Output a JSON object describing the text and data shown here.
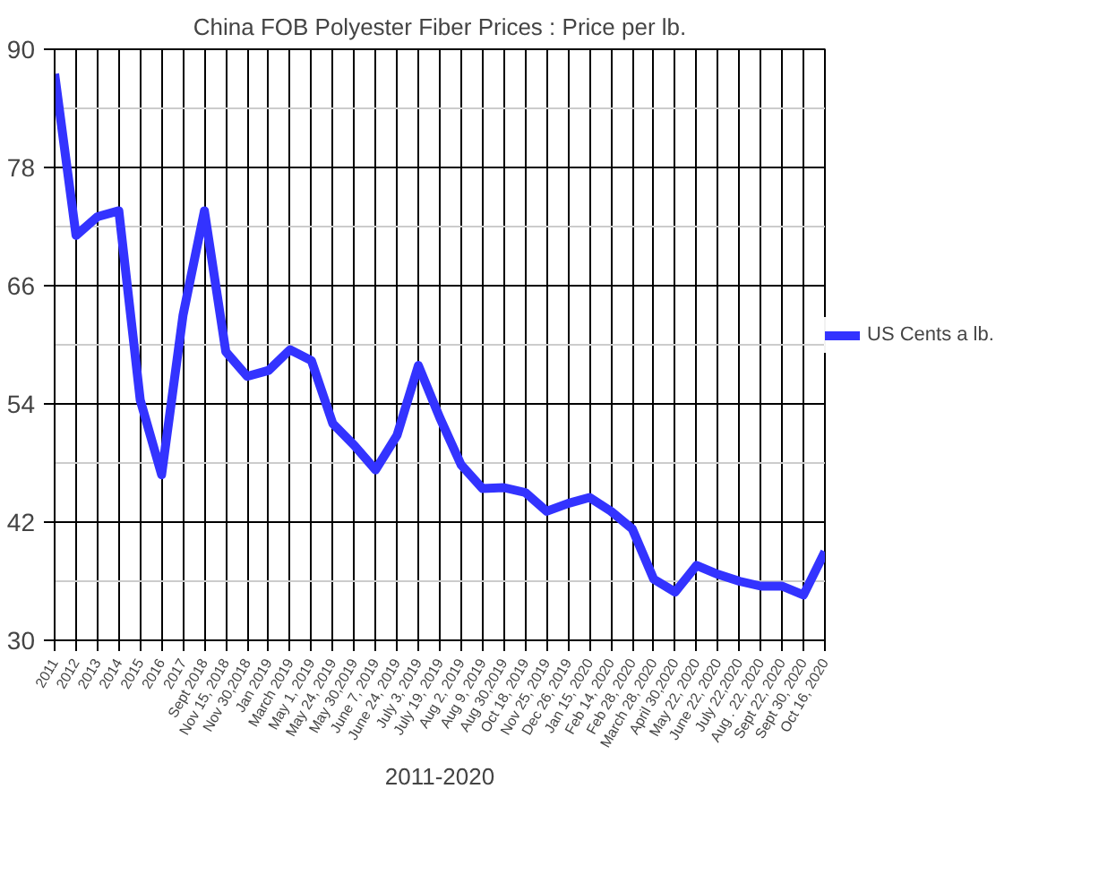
{
  "chart_data": {
    "type": "line",
    "title": "China FOB Polyester Fiber Prices : Price per lb.",
    "xlabel": "2011-2020",
    "categories": [
      "2011",
      "2012",
      "2013",
      "2014",
      "2015",
      "2016",
      "2017",
      "Sept 2018",
      "Nov 15, 2018",
      "Nov 30,2018",
      "Jan 2019",
      "March 2019",
      "May 1, 2019",
      "May 24, 2019",
      "May 30,2019",
      "June 7, 2019",
      "June 24, 2019",
      "July 3, 2019",
      "July 19, 2019",
      "Aug 2, 2019",
      "Aug 9, 2019",
      "Aug 30,2019",
      "Oct 18, 2019",
      "Nov 25, 2019",
      "Dec 26, 2019",
      "Jan 15, 2020",
      "Feb 14, 2020",
      "Feb 28, 2020",
      "March 28, 2020",
      "April 30,2020",
      "May 22, 2020",
      "June 22, 2020",
      "July 22,2020",
      "Aug . 22, 2020",
      "Sept 22, 2020",
      "Sept 30, 2020",
      "Oct 16, 2020"
    ],
    "series": [
      {
        "name": "US Cents a lb.",
        "color": "#3333ff",
        "values": [
          87.5,
          71.1,
          73,
          73.6,
          54.4,
          46.8,
          63,
          73.6,
          59.3,
          56.8,
          57.4,
          59.5,
          58.4,
          52,
          49.8,
          47.3,
          50.8,
          57.9,
          52.6,
          47.8,
          45.4,
          45.5,
          45,
          43.1,
          43.9,
          44.5,
          43.1,
          41.3,
          36.2,
          34.9,
          37.6,
          36.7,
          36,
          35.5,
          35.5,
          34.6,
          39
        ]
      }
    ],
    "ylim": [
      30,
      90
    ],
    "yticks": [
      30,
      42,
      54,
      66,
      78,
      90
    ],
    "grid": true,
    "legend": "right",
    "marker": "none",
    "line_style": "solid"
  }
}
